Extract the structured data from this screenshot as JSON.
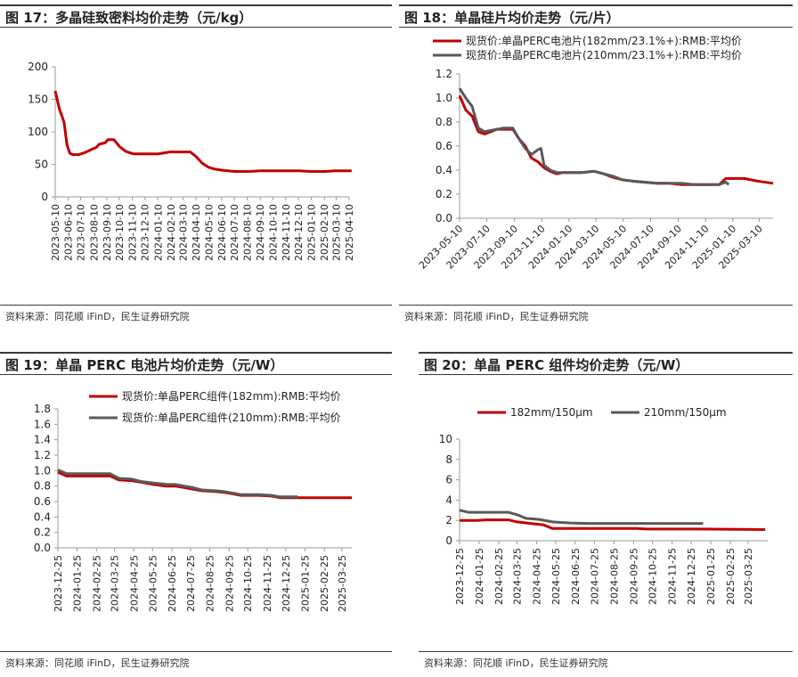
{
  "source_text": "资料来源：同花顺 iFinD，民生证券研究院",
  "chart_data": [
    {
      "type": "line",
      "title": "图 17：多晶硅致密料均价走势（元/kg）",
      "ylim": [
        0,
        200
      ],
      "yticks": [
        "0",
        "50",
        "100",
        "150",
        "200"
      ],
      "x_start": "2023-05-10",
      "x_end": "2025-04-10",
      "xticks": [
        "2023-05-10",
        "2023-06-10",
        "2023-07-10",
        "2023-08-10",
        "2023-09-10",
        "2023-10-10",
        "2023-11-10",
        "2023-12-10",
        "2024-01-10",
        "2024-02-10",
        "2024-03-10",
        "2024-04-10",
        "2024-05-10",
        "2024-06-10",
        "2024-07-10",
        "2024-08-10",
        "2024-09-10",
        "2024-10-10",
        "2024-11-10",
        "2024-12-10",
        "2025-01-10",
        "2025-02-10",
        "2025-03-10",
        "2025-04-10"
      ],
      "legend": "none",
      "colors": [
        "#c00000"
      ],
      "series": [
        {
          "x": [
            "2023-05-10",
            "2023-05-20",
            "2023-05-31",
            "2023-06-07",
            "2023-06-14",
            "2023-06-21",
            "2023-07-05",
            "2023-07-19",
            "2023-08-02",
            "2023-08-16",
            "2023-08-23",
            "2023-09-06",
            "2023-09-13",
            "2023-09-27",
            "2023-10-11",
            "2023-10-25",
            "2023-11-08",
            "2023-11-15",
            "2023-11-29",
            "2023-12-13",
            "2024-01-10",
            "2024-02-07",
            "2024-03-06",
            "2024-03-27",
            "2024-04-10",
            "2024-04-24",
            "2024-05-08",
            "2024-05-22",
            "2024-06-12",
            "2024-07-10",
            "2024-08-14",
            "2024-09-11",
            "2024-10-09",
            "2024-11-13",
            "2024-12-11",
            "2025-01-08",
            "2025-02-12",
            "2025-03-05",
            "2025-04-16"
          ],
          "y": [
            163,
            135,
            115,
            80,
            67,
            65,
            65,
            68,
            72,
            76,
            81,
            83,
            88,
            88,
            77,
            70,
            67,
            66,
            66,
            66,
            66,
            69,
            69,
            69,
            62,
            52,
            46,
            43,
            41,
            39,
            39,
            40,
            40,
            40,
            40,
            39,
            39,
            40,
            40
          ]
        }
      ]
    },
    {
      "type": "line",
      "title": "图 18：单晶硅片均价走势（元/片）",
      "ylim": [
        0,
        1.2
      ],
      "yticks": [
        "0.0",
        "0.2",
        "0.4",
        "0.6",
        "0.8",
        "1.0",
        "1.2"
      ],
      "x_start": "2023-05-10",
      "x_end": "2025-04-10",
      "xticks": [
        "2023-05-10",
        "2023-07-10",
        "2023-09-10",
        "2023-11-10",
        "2024-01-10",
        "2024-03-10",
        "2024-05-10",
        "2024-07-10",
        "2024-09-10",
        "2024-11-10",
        "2025-01-10",
        "2025-03-10"
      ],
      "legend": "top",
      "colors": [
        "#c00000",
        "#595959"
      ],
      "series": [
        {
          "name": "现货价:单晶PERC电池片(182mm/23.1%+):RMB:平均价",
          "x": [
            "2023-05-10",
            "2023-05-24",
            "2023-06-07",
            "2023-06-21",
            "2023-07-05",
            "2023-07-19",
            "2023-08-02",
            "2023-08-16",
            "2023-09-06",
            "2023-09-20",
            "2023-10-04",
            "2023-10-18",
            "2023-11-01",
            "2023-11-15",
            "2023-11-29",
            "2023-12-13",
            "2023-12-27",
            "2024-01-10",
            "2024-02-07",
            "2024-03-06",
            "2024-03-27",
            "2024-04-17",
            "2024-05-08",
            "2024-05-29",
            "2024-06-26",
            "2024-07-24",
            "2024-08-21",
            "2024-09-18",
            "2024-10-16",
            "2024-11-13",
            "2024-12-11",
            "2024-12-25",
            "2025-01-08",
            "2025-02-05",
            "2025-03-05",
            "2025-04-10"
          ],
          "y": [
            1.02,
            0.9,
            0.85,
            0.72,
            0.7,
            0.72,
            0.74,
            0.74,
            0.74,
            0.66,
            0.6,
            0.5,
            0.47,
            0.42,
            0.39,
            0.37,
            0.38,
            0.38,
            0.38,
            0.39,
            0.37,
            0.34,
            0.32,
            0.31,
            0.3,
            0.29,
            0.29,
            0.28,
            0.28,
            0.28,
            0.28,
            0.33,
            0.33,
            0.33,
            0.31,
            0.29
          ]
        },
        {
          "name": "现货价:单晶PERC电池片(210mm/23.1%+):RMB:平均价",
          "x": [
            "2023-05-10",
            "2023-05-24",
            "2023-06-07",
            "2023-06-21",
            "2023-07-05",
            "2023-07-19",
            "2023-08-02",
            "2023-08-16",
            "2023-09-06",
            "2023-09-20",
            "2023-10-04",
            "2023-10-18",
            "2023-11-01",
            "2023-11-08",
            "2023-11-15",
            "2023-11-29",
            "2023-12-13",
            "2023-12-27",
            "2024-01-10",
            "2024-02-07",
            "2024-03-06",
            "2024-03-27",
            "2024-04-17",
            "2024-05-08",
            "2024-05-29",
            "2024-06-26",
            "2024-07-24",
            "2024-08-21",
            "2024-09-18",
            "2024-10-16",
            "2024-11-13",
            "2024-12-11",
            "2024-12-25",
            "2025-01-01"
          ],
          "y": [
            1.08,
            1.0,
            0.93,
            0.75,
            0.72,
            0.73,
            0.74,
            0.75,
            0.75,
            0.66,
            0.58,
            0.53,
            0.57,
            0.58,
            0.44,
            0.4,
            0.38,
            0.38,
            0.38,
            0.38,
            0.39,
            0.37,
            0.35,
            0.32,
            0.31,
            0.3,
            0.29,
            0.29,
            0.29,
            0.28,
            0.28,
            0.28,
            0.3,
            0.28
          ]
        }
      ]
    },
    {
      "type": "line",
      "title": "图 19：单晶 PERC 电池片均价走势（元/W）",
      "ylim": [
        0,
        1.8
      ],
      "yticks": [
        "0.0",
        "0.2",
        "0.4",
        "0.6",
        "0.8",
        "1.0",
        "1.2",
        "1.4",
        "1.6",
        "1.8"
      ],
      "x_start": "2023-12-25",
      "x_end": "2025-04-10",
      "xticks": [
        "2023-12-25",
        "2024-01-25",
        "2024-02-25",
        "2024-03-25",
        "2024-04-25",
        "2024-05-25",
        "2024-06-25",
        "2024-07-25",
        "2024-08-25",
        "2024-09-25",
        "2024-10-25",
        "2024-11-25",
        "2024-12-25",
        "2025-01-25",
        "2025-02-25",
        "2025-03-25"
      ],
      "legend": "top-right",
      "colors": [
        "#c00000",
        "#595959"
      ],
      "series": [
        {
          "name": "现货价:单晶PERC组件(182mm):RMB:平均价",
          "x": [
            "2023-12-25",
            "2024-01-08",
            "2024-02-05",
            "2024-03-18",
            "2024-04-01",
            "2024-04-22",
            "2024-05-06",
            "2024-05-27",
            "2024-06-17",
            "2024-07-01",
            "2024-07-15",
            "2024-07-29",
            "2024-08-12",
            "2024-09-02",
            "2024-09-16",
            "2024-09-30",
            "2024-10-14",
            "2024-11-11",
            "2024-12-02",
            "2024-12-16",
            "2025-01-13",
            "2025-04-10"
          ],
          "y": [
            0.98,
            0.93,
            0.93,
            0.93,
            0.88,
            0.87,
            0.85,
            0.82,
            0.8,
            0.8,
            0.78,
            0.76,
            0.74,
            0.73,
            0.72,
            0.7,
            0.68,
            0.68,
            0.67,
            0.65,
            0.65,
            0.65
          ]
        },
        {
          "name": "现货价:单晶PERC组件(210mm):RMB:平均价",
          "x": [
            "2023-12-25",
            "2024-01-08",
            "2024-02-05",
            "2024-03-18",
            "2024-04-01",
            "2024-04-22",
            "2024-05-06",
            "2024-05-27",
            "2024-06-17",
            "2024-07-01",
            "2024-07-15",
            "2024-07-29",
            "2024-08-12",
            "2024-09-02",
            "2024-09-16",
            "2024-09-30",
            "2024-10-14",
            "2024-11-11",
            "2024-12-02",
            "2024-12-16",
            "2025-01-13"
          ],
          "y": [
            1.01,
            0.96,
            0.96,
            0.96,
            0.9,
            0.89,
            0.86,
            0.84,
            0.82,
            0.82,
            0.8,
            0.78,
            0.75,
            0.74,
            0.73,
            0.71,
            0.69,
            0.69,
            0.68,
            0.66,
            0.66
          ]
        }
      ]
    },
    {
      "type": "line",
      "title": "图 20：单晶 PERC 组件均价走势（元/W）",
      "ylim": [
        0,
        10
      ],
      "yticks": [
        "0",
        "2",
        "4",
        "6",
        "8",
        "10"
      ],
      "x_start": "2023-12-25",
      "x_end": "2025-04-25",
      "xticks": [
        "2023-12-25",
        "2024-01-25",
        "2024-02-25",
        "2024-03-25",
        "2024-04-25",
        "2024-05-25",
        "2024-06-25",
        "2024-07-25",
        "2024-08-25",
        "2024-09-25",
        "2024-10-25",
        "2024-11-25",
        "2024-12-25",
        "2025-01-25",
        "2025-02-25",
        "2025-03-25"
      ],
      "legend": "top",
      "colors": [
        "#c00000",
        "#595959"
      ],
      "series": [
        {
          "name": "182mm/150μm",
          "x": [
            "2023-12-25",
            "2024-01-22",
            "2024-02-05",
            "2024-03-11",
            "2024-03-25",
            "2024-04-15",
            "2024-05-06",
            "2024-05-20",
            "2024-06-17",
            "2024-09-30",
            "2024-10-14",
            "2024-12-02",
            "2025-01-06",
            "2025-04-21"
          ],
          "y": [
            2.0,
            2.0,
            2.05,
            2.05,
            1.85,
            1.7,
            1.55,
            1.2,
            1.2,
            1.2,
            1.15,
            1.15,
            1.15,
            1.1
          ]
        },
        {
          "name": "210mm/150μm",
          "x": [
            "2023-12-25",
            "2024-01-08",
            "2024-03-11",
            "2024-03-25",
            "2024-04-08",
            "2024-04-29",
            "2024-05-20",
            "2024-06-17",
            "2024-07-15",
            "2024-09-30",
            "2024-12-16",
            "2025-01-13"
          ],
          "y": [
            3.0,
            2.8,
            2.8,
            2.55,
            2.2,
            2.1,
            1.85,
            1.75,
            1.7,
            1.7,
            1.7,
            1.7
          ]
        }
      ]
    }
  ]
}
